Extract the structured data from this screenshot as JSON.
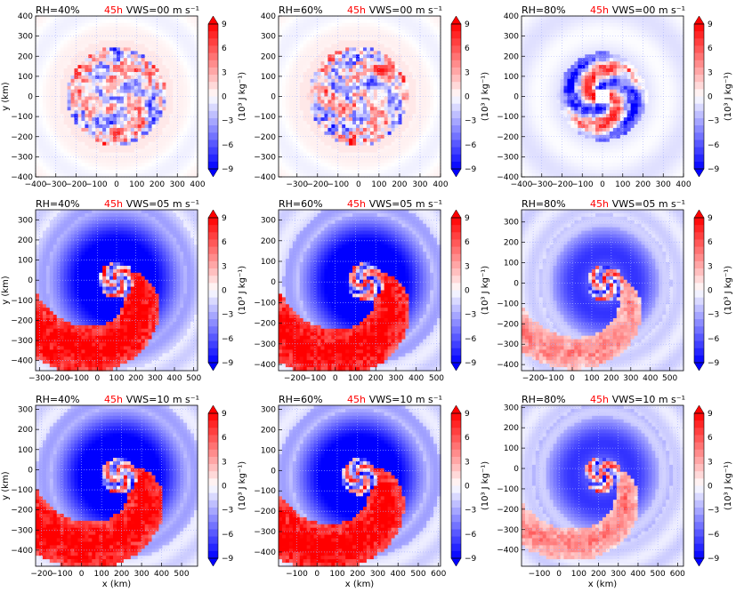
{
  "figure": {
    "xlabel": "x (km)",
    "ylabel": "y (km)",
    "colorbar_label": "(10³ J kg⁻¹)",
    "colorbar_ticks": [
      "−9",
      "−6",
      "−3",
      "0",
      "3",
      "6",
      "9"
    ],
    "colors": {
      "negative": "#0000ff",
      "neutral": "#ffffff",
      "positive": "#ff0000",
      "grid": "#aab4ff",
      "time": "#ff0000"
    }
  },
  "chart_data": [
    {
      "type": "heatmap",
      "title_left": "RH=40%",
      "title_time": "45h",
      "title_right": "VWS=00 m s⁻¹",
      "xlim": [
        -400,
        400
      ],
      "ylim": [
        -400,
        400
      ],
      "xticks": [
        "−400",
        "−300",
        "−200",
        "−100",
        "0",
        "100",
        "200",
        "300",
        "400"
      ],
      "yticks": [
        "−400",
        "−300",
        "−200",
        "−100",
        "0",
        "100",
        "200",
        "300",
        "400"
      ],
      "pattern": "disk",
      "center": [
        0,
        0
      ],
      "radius": 245,
      "vlim": [
        -9,
        9
      ]
    },
    {
      "type": "heatmap",
      "title_left": "RH=60%",
      "title_time": "45h",
      "title_right": "VWS=00 m s⁻¹",
      "xlim": [
        -390,
        400
      ],
      "ylim": [
        -400,
        400
      ],
      "xticks": [
        "−300",
        "−200",
        "−100",
        "0",
        "100",
        "200",
        "300",
        "400"
      ],
      "yticks": [
        "−400",
        "−300",
        "−200",
        "−100",
        "0",
        "100",
        "200",
        "300",
        "400"
      ],
      "pattern": "disk",
      "center": [
        0,
        0
      ],
      "radius": 245,
      "vlim": [
        -9,
        9
      ]
    },
    {
      "type": "heatmap",
      "title_left": "RH=80%",
      "title_time": "45h",
      "title_right": "VWS=00 m s⁻¹",
      "xlim": [
        -400,
        400
      ],
      "ylim": [
        -400,
        400
      ],
      "xticks": [
        "−400",
        "−300",
        "−200",
        "−100",
        "0",
        "100",
        "200",
        "300",
        "400"
      ],
      "yticks": [
        "−400",
        "−300",
        "−200",
        "−100",
        "0",
        "100",
        "200",
        "300",
        "400"
      ],
      "pattern": "swirl",
      "center": [
        0,
        0
      ],
      "radius": 220,
      "vlim": [
        -9,
        9
      ]
    },
    {
      "type": "heatmap",
      "title_left": "RH=40%",
      "title_time": "45h",
      "title_right": "VWS=05 m s⁻¹",
      "xlim": [
        -320,
        520
      ],
      "ylim": [
        -450,
        350
      ],
      "xticks": [
        "−300",
        "−200",
        "−100",
        "0",
        "100",
        "200",
        "300",
        "400",
        "500"
      ],
      "yticks": [
        "−400",
        "−300",
        "−200",
        "−100",
        "0",
        "100",
        "200",
        "300"
      ],
      "pattern": "sheared",
      "center": [
        100,
        0
      ],
      "radius": 330,
      "vlim": [
        -9,
        9
      ]
    },
    {
      "type": "heatmap",
      "title_left": "RH=60%",
      "title_time": "45h",
      "title_right": "VWS=05 m s⁻¹",
      "xlim": [
        -280,
        520
      ],
      "ylim": [
        -430,
        350
      ],
      "xticks": [
        "−200",
        "−100",
        "0",
        "100",
        "200",
        "300",
        "400",
        "500"
      ],
      "yticks": [
        "−400",
        "−300",
        "−200",
        "−100",
        "0",
        "100",
        "200",
        "300"
      ],
      "pattern": "sheared",
      "center": [
        150,
        0
      ],
      "radius": 300,
      "vlim": [
        -9,
        9
      ]
    },
    {
      "type": "heatmap",
      "title_left": "RH=80%",
      "title_time": "45h",
      "title_right": "VWS=05 m s⁻¹",
      "xlim": [
        -260,
        570
      ],
      "ylim": [
        -430,
        360
      ],
      "xticks": [
        "−200",
        "−100",
        "0",
        "100",
        "200",
        "300",
        "400",
        "500"
      ],
      "yticks": [
        "−400",
        "−300",
        "−200",
        "−100",
        "0",
        "100",
        "200",
        "300"
      ],
      "pattern": "sheared_weak",
      "center": [
        170,
        0
      ],
      "radius": 250,
      "vlim": [
        -9,
        9
      ]
    },
    {
      "type": "heatmap",
      "title_left": "RH=40%",
      "title_time": "45h",
      "title_right": "VWS=10 m s⁻¹",
      "xlim": [
        -230,
        580
      ],
      "ylim": [
        -480,
        320
      ],
      "xticks": [
        "−200",
        "−100",
        "0",
        "100",
        "200",
        "300",
        "400",
        "500"
      ],
      "yticks": [
        "−400",
        "−300",
        "−200",
        "−100",
        "0",
        "100",
        "200",
        "300"
      ],
      "pattern": "sheared",
      "center": [
        190,
        -30
      ],
      "radius": 310,
      "vlim": [
        -9,
        9
      ]
    },
    {
      "type": "heatmap",
      "title_left": "RH=60%",
      "title_time": "45h",
      "title_right": "VWS=10 m s⁻¹",
      "xlim": [
        -190,
        610
      ],
      "ylim": [
        -470,
        320
      ],
      "xticks": [
        "−100",
        "0",
        "100",
        "200",
        "300",
        "400",
        "500",
        "600"
      ],
      "yticks": [
        "−400",
        "−300",
        "−200",
        "−100",
        "0",
        "100",
        "200",
        "300"
      ],
      "pattern": "sheared",
      "center": [
        210,
        -30
      ],
      "radius": 300,
      "vlim": [
        -9,
        9
      ]
    },
    {
      "type": "heatmap",
      "title_left": "RH=80%",
      "title_time": "45h",
      "title_right": "VWS=10 m s⁻¹",
      "xlim": [
        -190,
        630
      ],
      "ylim": [
        -480,
        310
      ],
      "xticks": [
        "−100",
        "0",
        "100",
        "200",
        "300",
        "400",
        "500",
        "600"
      ],
      "yticks": [
        "−400",
        "−300",
        "−200",
        "−100",
        "0",
        "100",
        "200",
        "300"
      ],
      "pattern": "sheared_weak",
      "center": [
        220,
        -30
      ],
      "radius": 260,
      "vlim": [
        -9,
        9
      ]
    }
  ]
}
